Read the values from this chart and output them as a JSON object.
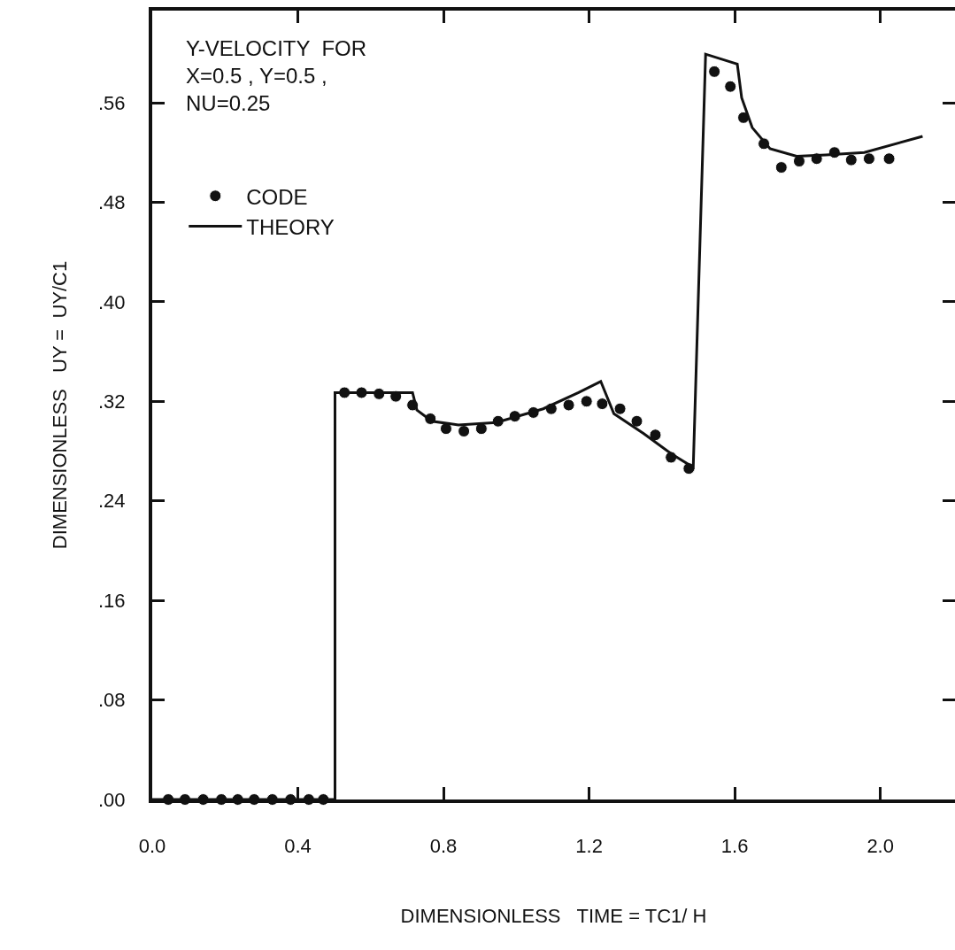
{
  "chart_data": {
    "type": "scatter",
    "title": "Y-VELOCITY  FOR\nX=0.5 , Y=0.5 ,\nNU=0.25",
    "xlabel": "DIMENSIONLESS   TIME = TC1/ H",
    "ylabel": "DIMENSIONLESS   UY =  UY/C1",
    "series": [
      {
        "name": "CODE",
        "color": "#111111",
        "marker": "circle",
        "x": [
          0.044,
          0.09,
          0.14,
          0.19,
          0.235,
          0.28,
          0.33,
          0.38,
          0.43,
          0.47,
          0.528,
          0.575,
          0.623,
          0.669,
          0.715,
          0.764,
          0.807,
          0.856,
          0.904,
          0.95,
          0.996,
          1.047,
          1.096,
          1.144,
          1.193,
          1.236,
          1.285,
          1.331,
          1.382,
          1.425,
          1.474,
          1.544,
          1.588,
          1.624,
          1.68,
          1.728,
          1.777,
          1.825,
          1.874,
          1.92,
          1.969,
          2.024
        ],
        "values": [
          0,
          0,
          0,
          0,
          0,
          0,
          0,
          0,
          0,
          0,
          0.327,
          0.327,
          0.326,
          0.324,
          0.317,
          0.306,
          0.298,
          0.296,
          0.298,
          0.304,
          0.308,
          0.311,
          0.314,
          0.317,
          0.32,
          0.318,
          0.314,
          0.304,
          0.293,
          0.275,
          0.266,
          0.585,
          0.573,
          0.548,
          0.527,
          0.508,
          0.513,
          0.515,
          0.52,
          0.514,
          0.515,
          0.515
        ]
      },
      {
        "name": "THEORY",
        "type": "line",
        "color": "#111111",
        "line_style": "solid",
        "x": [
          0,
          0.502,
          0.502,
          0.715,
          0.727,
          0.768,
          0.841,
          0.945,
          1.074,
          1.171,
          1.232,
          1.268,
          1.35,
          1.425,
          1.486,
          1.52,
          1.607,
          1.619,
          1.648,
          1.697,
          1.77,
          1.85,
          1.956,
          2.116
        ],
        "values": [
          0,
          0,
          0.327,
          0.327,
          0.313,
          0.304,
          0.301,
          0.303,
          0.314,
          0.327,
          0.336,
          0.31,
          0.294,
          0.278,
          0.267,
          0.599,
          0.591,
          0.564,
          0.54,
          0.523,
          0.517,
          0.518,
          0.52,
          0.533
        ]
      }
    ],
    "xlim": [
      0,
      2.205
    ],
    "ylim": [
      0,
      0.634
    ],
    "xticks": [
      {
        "value": 0,
        "label": "0.0"
      },
      {
        "value": 0.4,
        "label": "0.4"
      },
      {
        "value": 0.8,
        "label": "0.8"
      },
      {
        "value": 1.2,
        "label": "1.2"
      },
      {
        "value": 1.6,
        "label": "1.6"
      },
      {
        "value": 2.0,
        "label": "2.0"
      }
    ],
    "yticks": [
      {
        "value": 0,
        "label": ".00"
      },
      {
        "value": 0.08,
        "label": ".08"
      },
      {
        "value": 0.16,
        "label": ".16"
      },
      {
        "value": 0.24,
        "label": ".24"
      },
      {
        "value": 0.32,
        "label": ".32"
      },
      {
        "value": 0.4,
        "label": ".40"
      },
      {
        "value": 0.48,
        "label": ".48"
      },
      {
        "value": 0.56,
        "label": ".56"
      }
    ],
    "grid": false,
    "legend": "top left"
  }
}
